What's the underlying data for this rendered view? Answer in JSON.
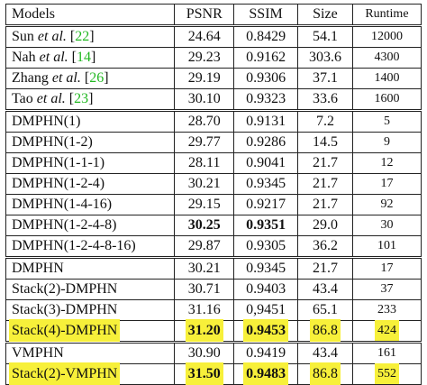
{
  "table": {
    "header": [
      "Models",
      "PSNR",
      "SSIM",
      "Size",
      "Runtime"
    ],
    "groups": [
      [
        {
          "model": [
            {
              "text": "Sun "
            },
            {
              "text": "et al.",
              "style": "italic"
            },
            {
              "text": " ["
            },
            {
              "text": "22",
              "style": "cite"
            },
            {
              "text": "]"
            }
          ],
          "psnr": "24.64",
          "ssim": "0.8429",
          "size": "54.1",
          "runtime": "12000"
        },
        {
          "model": [
            {
              "text": "Nah "
            },
            {
              "text": "et al.",
              "style": "italic"
            },
            {
              "text": " ["
            },
            {
              "text": "14",
              "style": "cite"
            },
            {
              "text": "]"
            }
          ],
          "psnr": "29.23",
          "ssim": "0.9162",
          "size": "303.6",
          "runtime": "4300"
        },
        {
          "model": [
            {
              "text": "Zhang "
            },
            {
              "text": "et al.",
              "style": "italic"
            },
            {
              "text": " ["
            },
            {
              "text": "26",
              "style": "cite"
            },
            {
              "text": "]"
            }
          ],
          "psnr": "29.19",
          "ssim": "0.9306",
          "size": "37.1",
          "runtime": "1400"
        },
        {
          "model": [
            {
              "text": "Tao "
            },
            {
              "text": "et al.",
              "style": "italic"
            },
            {
              "text": " ["
            },
            {
              "text": "23",
              "style": "cite"
            },
            {
              "text": "]"
            }
          ],
          "psnr": "30.10",
          "ssim": "0.9323",
          "size": "33.6",
          "runtime": "1600"
        }
      ],
      [
        {
          "model": [
            {
              "text": "DMPHN(1)"
            }
          ],
          "psnr": "28.70",
          "ssim": "0.9131",
          "size": "7.2",
          "runtime": "5"
        },
        {
          "model": [
            {
              "text": "DMPHN(1-2)"
            }
          ],
          "psnr": "29.77",
          "ssim": "0.9286",
          "size": "14.5",
          "runtime": "9"
        },
        {
          "model": [
            {
              "text": "DMPHN(1-1-1)"
            }
          ],
          "psnr": "28.11",
          "ssim": "0.9041",
          "size": "21.7",
          "runtime": "12"
        },
        {
          "model": [
            {
              "text": "DMPHN(1-2-4)"
            }
          ],
          "psnr": "30.21",
          "ssim": "0.9345",
          "size": "21.7",
          "runtime": "17"
        },
        {
          "model": [
            {
              "text": "DMPHN(1-4-16)"
            }
          ],
          "psnr": "29.15",
          "ssim": "0.9217",
          "size": "21.7",
          "runtime": "92"
        },
        {
          "model": [
            {
              "text": "DMPHN(1-2-4-8)"
            }
          ],
          "psnr": "30.25",
          "ssim": "0.9351",
          "size": "29.0",
          "runtime": "30",
          "bold_cols": [
            "psnr",
            "ssim"
          ]
        },
        {
          "model": [
            {
              "text": "DMPHN(1-2-4-8-16)"
            }
          ],
          "psnr": "29.87",
          "ssim": "0.9305",
          "size": "36.2",
          "runtime": "101"
        }
      ],
      [
        {
          "model": [
            {
              "text": "DMPHN"
            }
          ],
          "psnr": "30.21",
          "ssim": "0.9345",
          "size": "21.7",
          "runtime": "17"
        },
        {
          "model": [
            {
              "text": "Stack(2)-DMPHN"
            }
          ],
          "psnr": "30.71",
          "ssim": "0.9403",
          "size": "43.4",
          "runtime": "37"
        },
        {
          "model": [
            {
              "text": "Stack(3)-DMPHN"
            }
          ],
          "psnr": "31.16",
          "ssim": "0,9451",
          "size": "65.1",
          "runtime": "233"
        },
        {
          "model": [
            {
              "text": "Stack(4)-DMPHN"
            }
          ],
          "psnr": "31.20",
          "ssim": "0.9453",
          "size": "86.8",
          "runtime": "424",
          "bold_cols": [
            "psnr",
            "ssim"
          ],
          "highlight": true
        }
      ],
      [
        {
          "model": [
            {
              "text": "VMPHN"
            }
          ],
          "psnr": "30.90",
          "ssim": "0.9419",
          "size": "43.4",
          "runtime": "161"
        },
        {
          "model": [
            {
              "text": "Stack(2)-VMPHN"
            }
          ],
          "psnr": "31.50",
          "ssim": "0.9483",
          "size": "86.8",
          "runtime": "552",
          "bold_cols": [
            "psnr",
            "ssim"
          ],
          "highlight": true
        }
      ]
    ]
  }
}
